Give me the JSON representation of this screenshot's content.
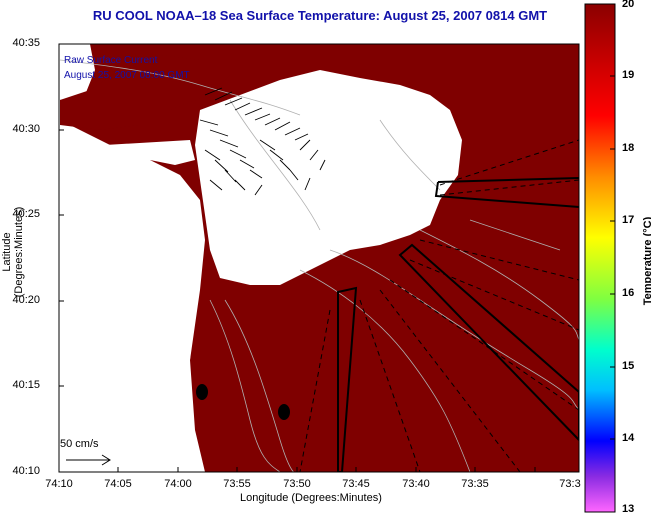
{
  "title": "RU COOL  NOAA–18  Sea Surface Temperature:  August 25, 2007 0814 GMT",
  "legend_line1": "Raw Surface Current",
  "legend_line2": "August 25, 2007 08:00 GMT",
  "scale_label": "50 cm/s",
  "x_axis": {
    "label": "Longitude (Degrees:Minutes)",
    "ticks": [
      "74:10",
      "74:05",
      "74:00",
      "73:55",
      "73:50",
      "73:45",
      "73:40",
      "73:35",
      "73:3"
    ]
  },
  "y_axis": {
    "label": "Latitude (Degrees:Minutes)",
    "ticks": [
      "40:35",
      "40:30",
      "40:25",
      "40:20",
      "40:15",
      "40:10"
    ]
  },
  "colorbar": {
    "label": "Temperature (°C)",
    "ticks": [
      "20",
      "19",
      "18",
      "17",
      "16",
      "15",
      "14",
      "13"
    ],
    "colors": [
      "#8b0000",
      "#ff0000",
      "#ff8c00",
      "#ffff00",
      "#00ff66",
      "#00ffff",
      "#0000ff",
      "#ff66ff"
    ]
  },
  "map": {
    "sst_color": "#7f0000",
    "cloud_color": "#ffffff",
    "border_color": "#000000"
  }
}
